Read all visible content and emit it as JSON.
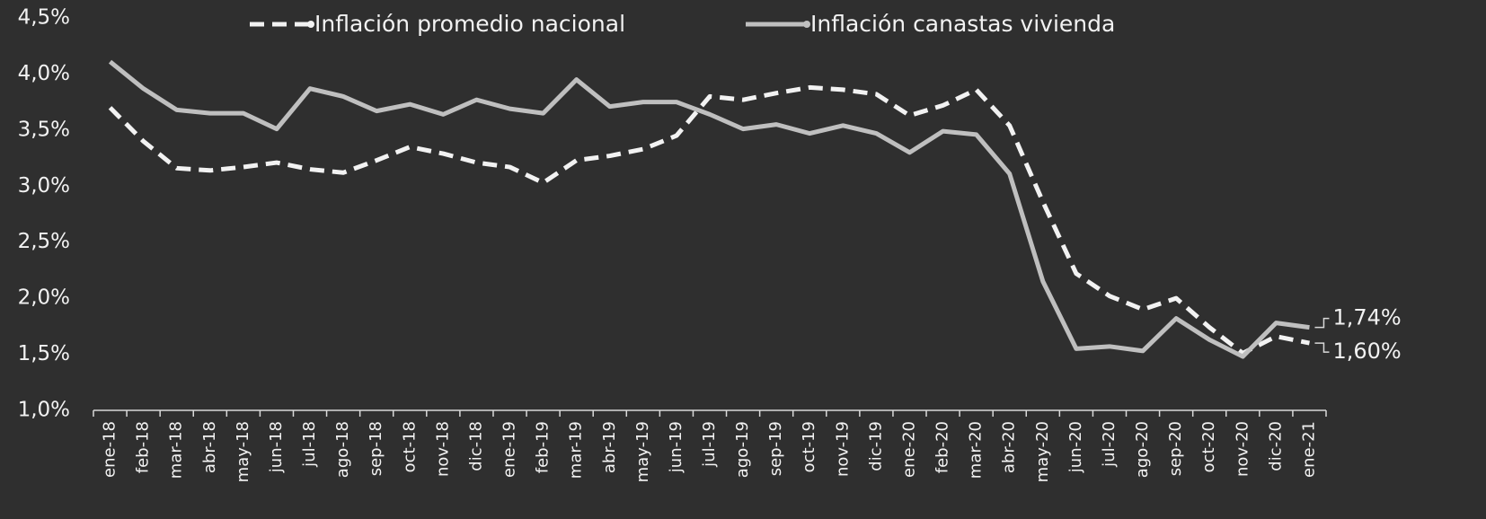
{
  "chart_data": {
    "type": "line",
    "categories": [
      "ene-18",
      "feb-18",
      "mar-18",
      "abr-18",
      "may-18",
      "jun-18",
      "jul-18",
      "ago-18",
      "sep-18",
      "oct-18",
      "nov-18",
      "dic-18",
      "ene-19",
      "feb-19",
      "mar-19",
      "abr-19",
      "may-19",
      "jun-19",
      "jul-19",
      "ago-19",
      "sep-19",
      "oct-19",
      "nov-19",
      "dic-19",
      "ene-20",
      "feb-20",
      "mar-20",
      "abr-20",
      "may-20",
      "jun-20",
      "jul-20",
      "ago-20",
      "sep-20",
      "oct-20",
      "nov-20",
      "dic-20",
      "ene-21"
    ],
    "series": [
      {
        "name": "Inflación promedio nacional",
        "color": "#f2f2f2",
        "dashed": true,
        "values": [
          3.7,
          3.4,
          3.16,
          3.14,
          3.17,
          3.21,
          3.15,
          3.12,
          3.23,
          3.35,
          3.29,
          3.21,
          3.17,
          3.03,
          3.23,
          3.27,
          3.33,
          3.45,
          3.8,
          3.77,
          3.83,
          3.88,
          3.86,
          3.82,
          3.63,
          3.72,
          3.86,
          3.54,
          2.86,
          2.22,
          2.02,
          1.9,
          2.0,
          1.74,
          1.51,
          1.66,
          1.6
        ],
        "value_labels": [
          null,
          null,
          null,
          null,
          null,
          null,
          null,
          null,
          null,
          null,
          null,
          null,
          null,
          null,
          null,
          null,
          null,
          null,
          null,
          null,
          null,
          null,
          null,
          null,
          null,
          null,
          null,
          null,
          null,
          null,
          null,
          null,
          null,
          null,
          null,
          null,
          "1,60%"
        ]
      },
      {
        "name": "Inflación canastas vivienda",
        "color": "#bfbfbf",
        "dashed": false,
        "values": [
          4.11,
          3.87,
          3.68,
          3.65,
          3.65,
          3.51,
          3.87,
          3.8,
          3.67,
          3.73,
          3.64,
          3.77,
          3.69,
          3.65,
          3.95,
          3.71,
          3.75,
          3.75,
          3.64,
          3.51,
          3.55,
          3.47,
          3.54,
          3.47,
          3.3,
          3.49,
          3.46,
          3.11,
          2.15,
          1.55,
          1.57,
          1.53,
          1.82,
          1.63,
          1.48,
          1.78,
          1.74
        ],
        "value_labels": [
          null,
          null,
          null,
          null,
          null,
          null,
          null,
          null,
          null,
          null,
          null,
          null,
          null,
          null,
          null,
          null,
          null,
          null,
          null,
          null,
          null,
          null,
          null,
          null,
          null,
          null,
          null,
          null,
          null,
          null,
          null,
          null,
          null,
          null,
          null,
          null,
          "1,74%"
        ]
      }
    ],
    "ylim": [
      1.0,
      4.5
    ],
    "yticks": [
      {
        "value": 1.0,
        "label": "1,0%"
      },
      {
        "value": 1.5,
        "label": "1,5%"
      },
      {
        "value": 2.0,
        "label": "2,0%"
      },
      {
        "value": 2.5,
        "label": "2,5%"
      },
      {
        "value": 3.0,
        "label": "3,0%"
      },
      {
        "value": 3.5,
        "label": "3,5%"
      },
      {
        "value": 4.0,
        "label": "4,0%"
      },
      {
        "value": 4.5,
        "label": "4,5%"
      }
    ],
    "grid": false,
    "legend": "top"
  }
}
